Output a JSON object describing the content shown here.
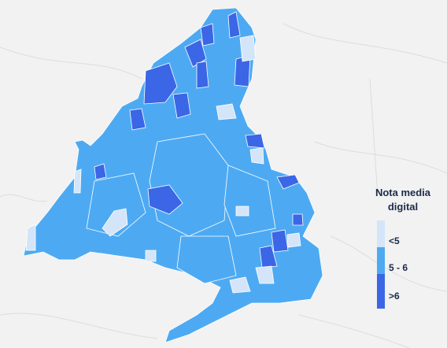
{
  "legend": {
    "title": "Nota media digital",
    "items": [
      {
        "label": "<5",
        "color": "#d4e5f9"
      },
      {
        "label": "5 - 6",
        "color": "#4daaf2"
      },
      {
        "label": ">6",
        "color": "#3b66e6"
      }
    ]
  }
}
